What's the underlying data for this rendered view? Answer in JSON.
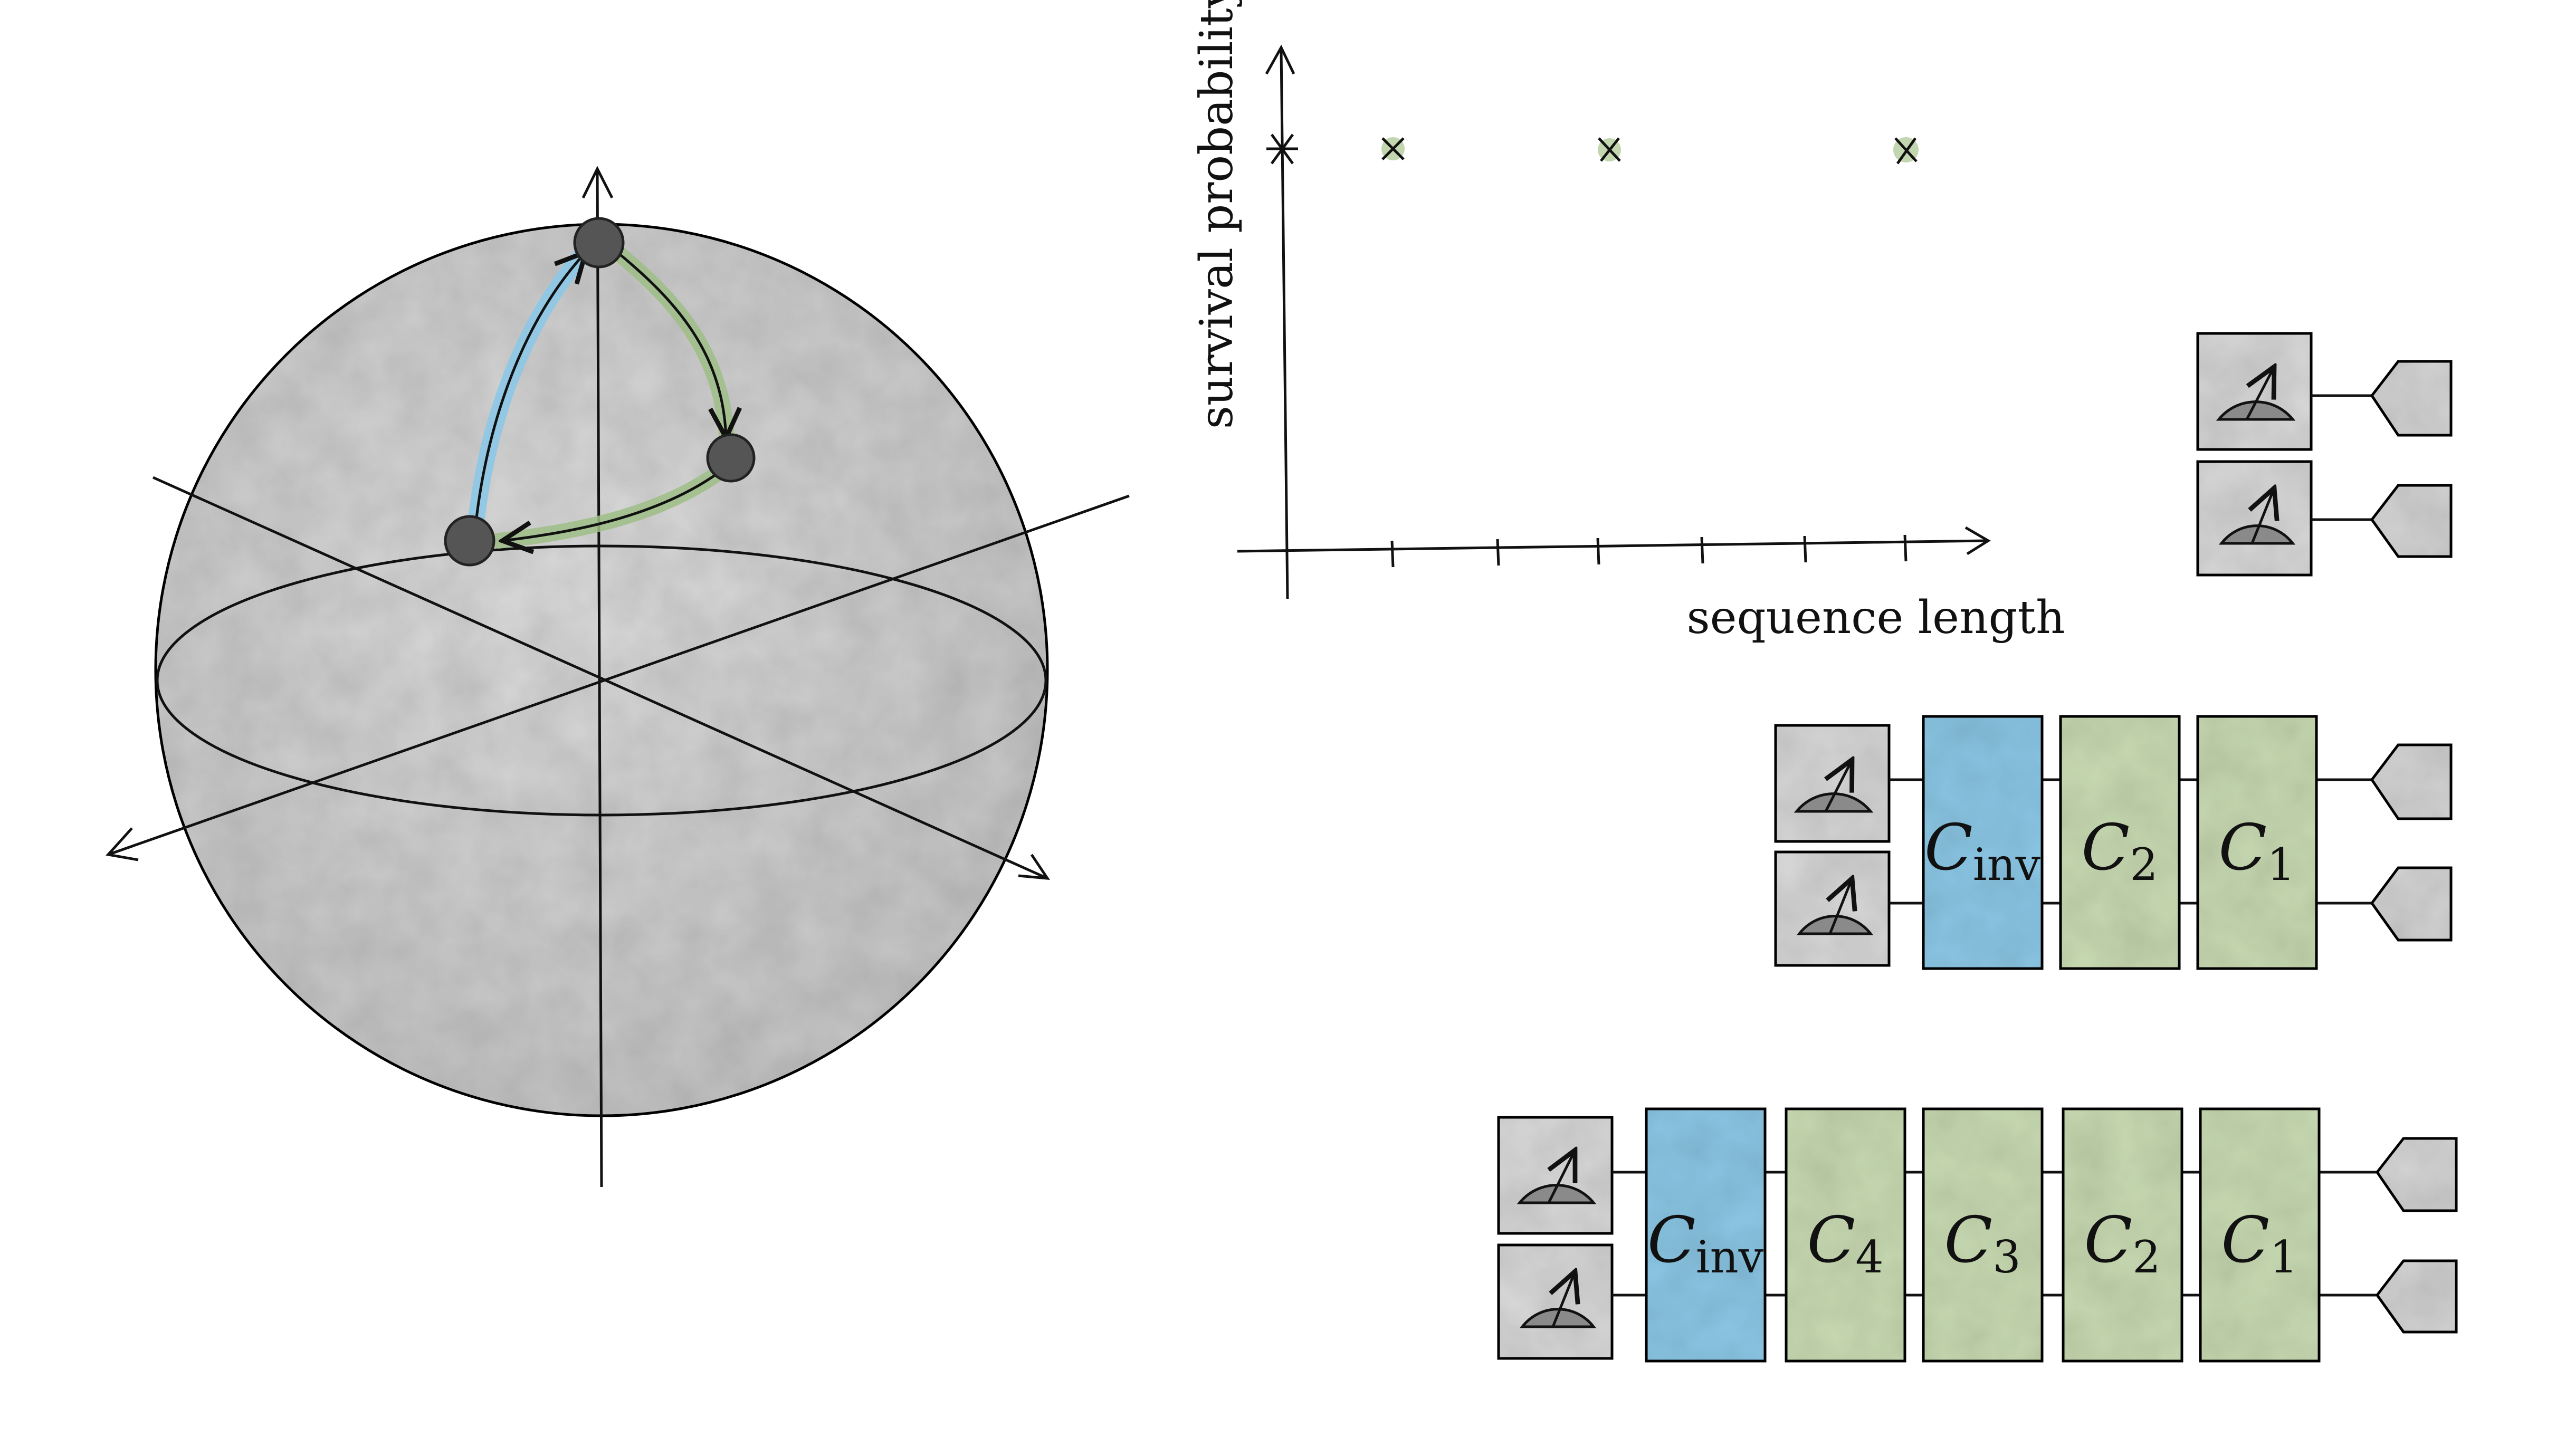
{
  "plot": {
    "ylabel": "survival probability",
    "xlabel": "sequence length"
  },
  "gates": {
    "inverse": {
      "base": "C",
      "sub": "inv"
    },
    "c1": {
      "base": "C",
      "sub": "1"
    },
    "c2": {
      "base": "C",
      "sub": "2"
    },
    "c3": {
      "base": "C",
      "sub": "3"
    },
    "c4": {
      "base": "C",
      "sub": "4"
    }
  },
  "colors": {
    "ink": "#111111",
    "sphere": "#d4d4d4",
    "blue": "#8cc8e6",
    "green": "#c9dbb3",
    "greenStroke": "#8fb07a",
    "meterBox": "#d8d8d8",
    "qubitDot": "#505050"
  }
}
